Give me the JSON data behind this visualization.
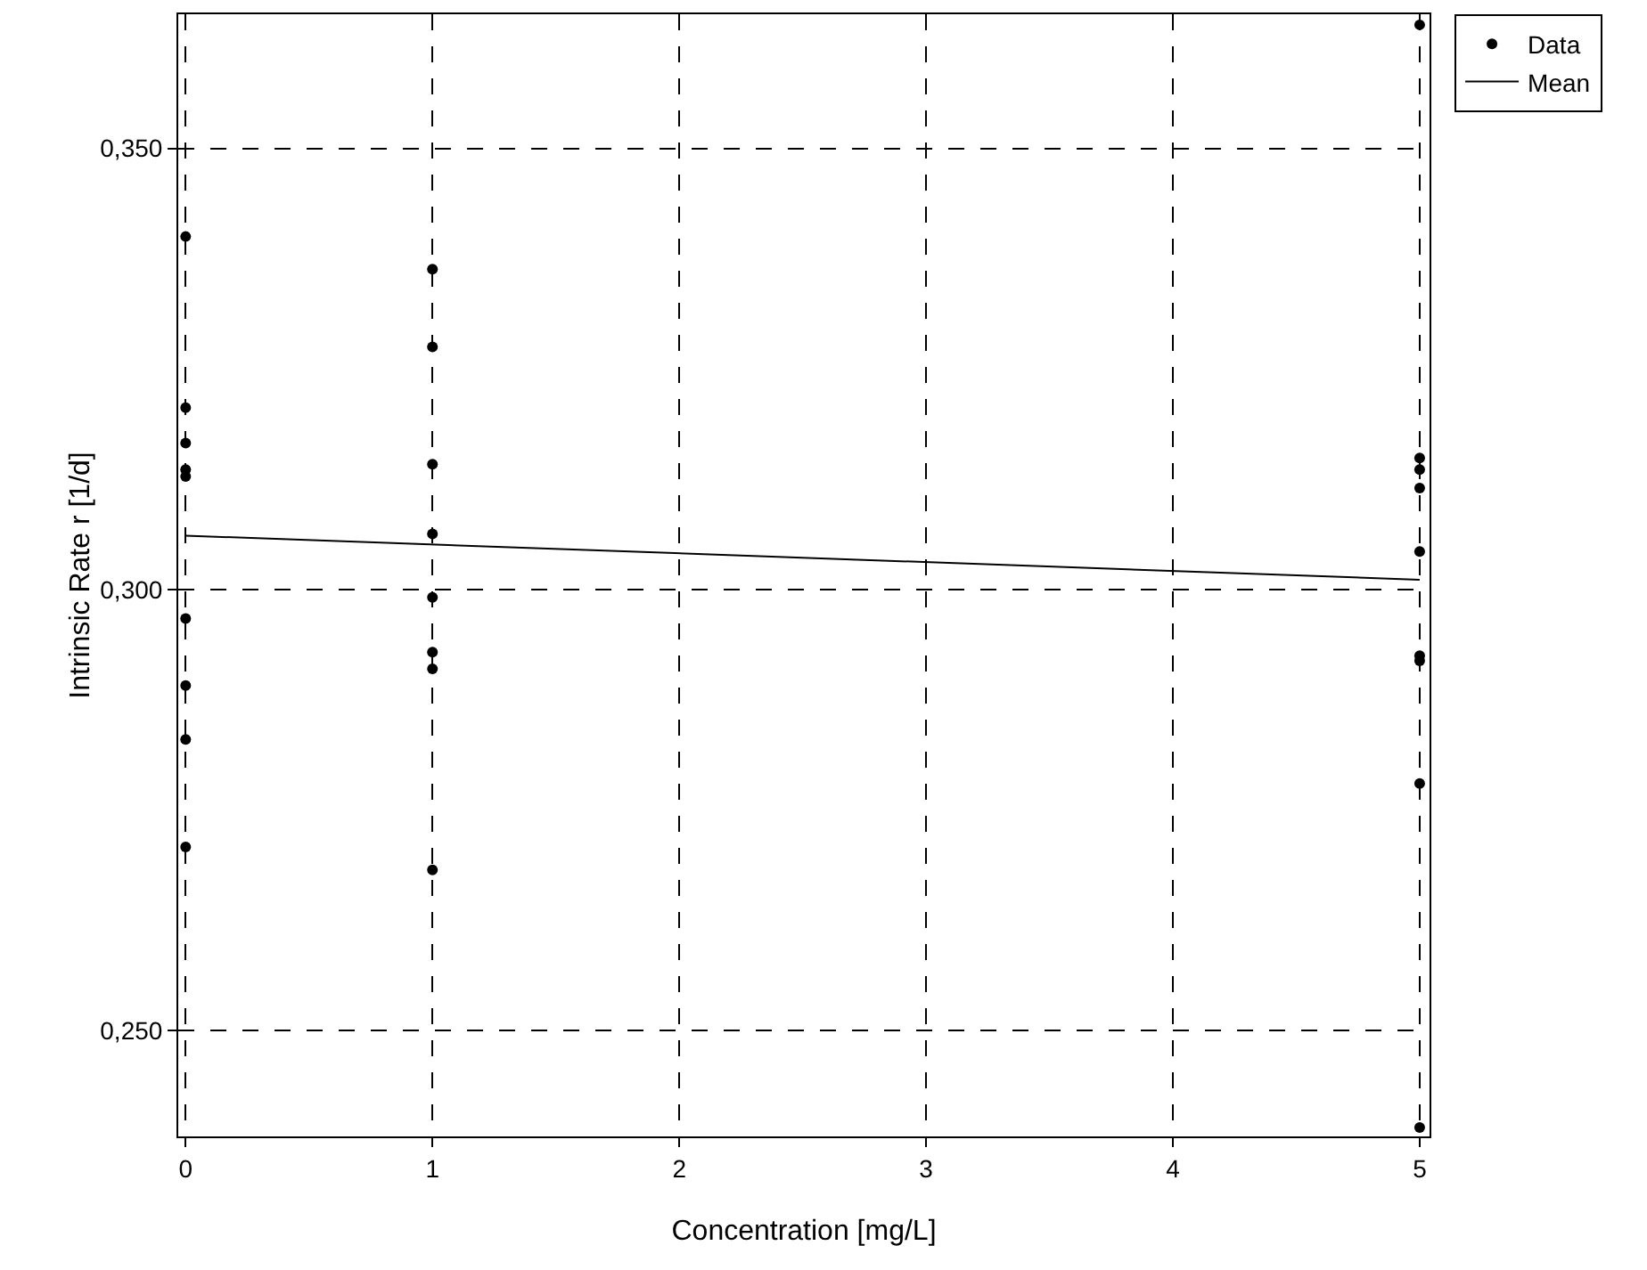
{
  "chart_data": {
    "type": "scatter",
    "xlabel": "Concentration [mg/L]",
    "ylabel": "Intrinsic Rate r [1/d]",
    "xlim": [
      -0.03,
      5.04
    ],
    "xticks": [
      0,
      1,
      2,
      3,
      4,
      5
    ],
    "ylim": [
      0.238,
      0.3652
    ],
    "yticks": [
      {
        "value": 0.25,
        "label": "0,250"
      },
      {
        "value": 0.3,
        "label": "0,300"
      },
      {
        "value": 0.35,
        "label": "0,350"
      }
    ],
    "grid": true,
    "legend": "top right",
    "series": [
      {
        "name": "Data",
        "color": "#000000",
        "marker": "circle",
        "x": [
          0,
          0,
          0,
          0,
          0,
          0,
          0,
          0,
          0,
          1,
          1,
          1,
          1,
          1,
          1,
          1,
          1,
          5,
          5,
          5,
          5,
          5,
          5,
          5,
          5,
          5
        ],
        "values": [
          0.34,
          0.3206,
          0.3166,
          0.3136,
          0.3128,
          0.2967,
          0.2891,
          0.283,
          0.2708,
          0.3363,
          0.3275,
          0.3142,
          0.3063,
          0.2991,
          0.2929,
          0.291,
          0.2682,
          0.364,
          0.3149,
          0.3136,
          0.3115,
          0.3043,
          0.2925,
          0.2919,
          0.278,
          0.239
        ]
      },
      {
        "name": "Mean",
        "type": "line",
        "color": "#000000",
        "line_style": "solid",
        "marker": "none",
        "x": [
          0,
          5
        ],
        "values": [
          0.3061,
          0.3011
        ]
      }
    ]
  }
}
